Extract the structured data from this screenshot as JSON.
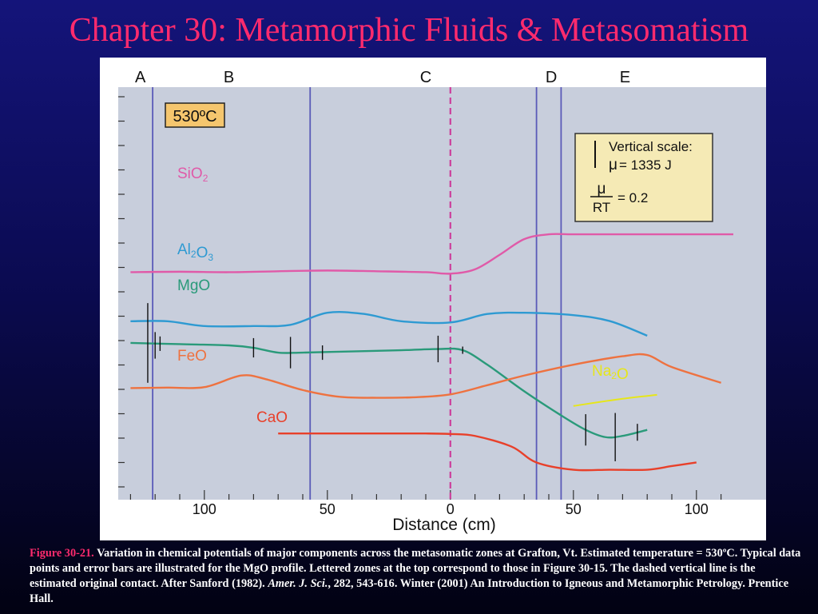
{
  "slide": {
    "title": "Chapter 30: Metamorphic Fluids & Metasomatism"
  },
  "caption": {
    "label": "Figure 30-21.",
    "text": " Variation in chemical potentials of major components across the metasomatic zones at Grafton, Vt. Estimated temperature = 530ºC. Typical data points and error bars are illustrated for the MgO profile. Lettered zones at the top correspond to those in Figure 30-15. The dashed vertical line is the estimated original contact. After Sanford (1982). ",
    "journal": "Amer. J. Sci.",
    "rest": ", 282, 543-616. Winter (2001) An Introduction to Igneous and Metamorphic Petrology. Prentice Hall."
  },
  "colors": {
    "plot_background": "#c8cedc",
    "zone_boundary": "#5a5ab8",
    "contact_line": "#cc3f9c",
    "SiO2": "#e05aa8",
    "Al2O3": "#2e9ad2",
    "MgO": "#2a9a7a",
    "FeO": "#ee7240",
    "CaO": "#e8402a",
    "Na2O": "#e6e61a"
  },
  "chart_data": {
    "type": "line",
    "xlabel": "Distance (cm)",
    "x_range": [
      -135,
      115
    ],
    "x_ticks": [
      -100,
      -50,
      0,
      50,
      100
    ],
    "x_tick_labels": [
      "100",
      "50",
      "0",
      "50",
      "100"
    ],
    "temperature_label": "530ºC",
    "zones": [
      {
        "label": "A",
        "x": -126
      },
      {
        "label": "B",
        "x": -90
      },
      {
        "label": "C",
        "x": -10
      },
      {
        "label": "D",
        "x": 41
      },
      {
        "label": "E",
        "x": 71
      }
    ],
    "zone_boundaries": [
      -121,
      -57,
      35,
      45
    ],
    "contact_x": 0,
    "vertical_scale": {
      "title": "Vertical scale:",
      "mu_value": "= 1335 J",
      "ratio_numerator": "μ",
      "ratio_denominator": "RT",
      "ratio_value": "= 0.2"
    },
    "series": [
      {
        "name": "SiO2",
        "label_base": "SiO",
        "label_sub": "2",
        "x": [
          -130,
          -110,
          -90,
          -70,
          -50,
          -30,
          -10,
          0,
          10,
          20,
          30,
          40,
          50,
          70,
          90,
          115
        ],
        "y": [
          5.58,
          5.6,
          5.58,
          5.62,
          5.65,
          5.62,
          5.58,
          5.52,
          5.7,
          6.3,
          6.95,
          7.15,
          7.15,
          7.15,
          7.15,
          7.15
        ]
      },
      {
        "name": "Al2O3",
        "label_base": "Al",
        "label_sub": "2",
        "label_base2": "O",
        "label_sub2": "3",
        "x": [
          -130,
          -115,
          -100,
          -80,
          -65,
          -50,
          -35,
          -20,
          0,
          15,
          30,
          50,
          65,
          80
        ],
        "y": [
          3.55,
          3.55,
          3.35,
          3.35,
          3.4,
          3.9,
          3.85,
          3.55,
          3.5,
          3.85,
          3.9,
          3.8,
          3.55,
          2.95
        ]
      },
      {
        "name": "MgO",
        "label_base": "MgO",
        "x": [
          -130,
          -110,
          -90,
          -80,
          -70,
          -60,
          -40,
          -20,
          -5,
          5,
          15,
          30,
          45,
          55,
          63,
          70,
          80
        ],
        "y": [
          2.65,
          2.6,
          2.55,
          2.45,
          2.25,
          2.25,
          2.3,
          2.35,
          2.4,
          2.35,
          1.75,
          0.65,
          -0.35,
          -0.95,
          -1.25,
          -1.2,
          -0.95
        ]
      },
      {
        "name": "FeO",
        "label_base": "FeO",
        "x": [
          -130,
          -115,
          -100,
          -85,
          -75,
          -60,
          -45,
          -30,
          -15,
          0,
          15,
          30,
          50,
          70,
          80,
          90,
          110
        ],
        "y": [
          0.78,
          0.8,
          0.82,
          1.3,
          1.15,
          0.7,
          0.42,
          0.38,
          0.4,
          0.52,
          0.9,
          1.3,
          1.75,
          2.1,
          2.15,
          1.65,
          1.0
        ]
      },
      {
        "name": "CaO",
        "label_base": "CaO",
        "x": [
          -70,
          -50,
          -30,
          -10,
          0,
          10,
          25,
          35,
          50,
          65,
          80,
          90,
          100
        ],
        "y": [
          -1.1,
          -1.1,
          -1.1,
          -1.1,
          -1.12,
          -1.2,
          -1.65,
          -2.3,
          -2.6,
          -2.6,
          -2.6,
          -2.45,
          -2.3
        ]
      },
      {
        "name": "Na2O",
        "label_base": "Na",
        "label_sub": "2",
        "label_base2": "O",
        "x": [
          50,
          70,
          84
        ],
        "y": [
          0.04,
          0.34,
          0.5
        ]
      }
    ],
    "mgo_error_bars": [
      {
        "x": -123,
        "y": 2.65,
        "half": 1.65
      },
      {
        "x": -120,
        "y": 2.55,
        "half": 0.55
      },
      {
        "x": -118,
        "y": 2.62,
        "half": 0.3
      },
      {
        "x": -80,
        "y": 2.45,
        "half": 0.4
      },
      {
        "x": -65,
        "y": 2.25,
        "half": 0.65
      },
      {
        "x": -52,
        "y": 2.25,
        "half": 0.3
      },
      {
        "x": -5,
        "y": 2.4,
        "half": 0.55
      },
      {
        "x": 5,
        "y": 2.35,
        "half": 0.15
      },
      {
        "x": 55,
        "y": -0.95,
        "half": 0.65
      },
      {
        "x": 67,
        "y": -1.25,
        "half": 1.0
      },
      {
        "x": 76,
        "y": -1.05,
        "half": 0.35
      }
    ]
  }
}
